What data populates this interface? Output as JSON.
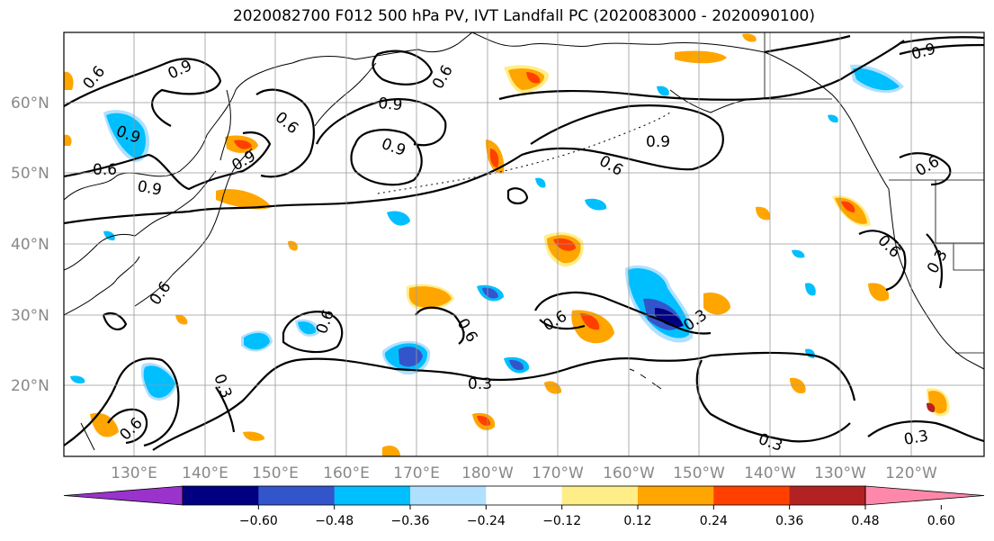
{
  "title": "2020082700 F012 500 hPa PV, IVT Landfall PC (2020083000 - 2020090100)",
  "latitudes": [
    {
      "label": "60°N",
      "lat": 60
    },
    {
      "label": "50°N",
      "lat": 50
    },
    {
      "label": "40°N",
      "lat": 40
    },
    {
      "label": "30°N",
      "lat": 30
    },
    {
      "label": "20°N",
      "lat": 20
    }
  ],
  "longitudes": [
    {
      "label": "130°E",
      "lon": 130
    },
    {
      "label": "140°E",
      "lon": 140
    },
    {
      "label": "150°E",
      "lon": 150
    },
    {
      "label": "160°E",
      "lon": 160
    },
    {
      "label": "170°E",
      "lon": 170
    },
    {
      "label": "180°W",
      "lon": 180
    },
    {
      "label": "170°W",
      "lon": 190
    },
    {
      "label": "160°W",
      "lon": 200
    },
    {
      "label": "150°W",
      "lon": 210
    },
    {
      "label": "140°W",
      "lon": 220
    },
    {
      "label": "130°W",
      "lon": 230
    },
    {
      "label": "120°W",
      "lon": 240
    }
  ],
  "colorbar": {
    "colors": [
      "#9933cc",
      "#000080",
      "#3355cc",
      "#00bfff",
      "#b0e0ff",
      "#ffffff",
      "#ffee88",
      "#ffa500",
      "#ff4000",
      "#b22222",
      "#ff88aa"
    ],
    "ticks": [
      "−0.60",
      "−0.48",
      "−0.36",
      "−0.24",
      "−0.12",
      "0.12",
      "0.24",
      "0.36",
      "0.48",
      "0.60"
    ]
  },
  "contour_labels": [
    "0.9",
    "0.6",
    "0.3"
  ],
  "legend_colors": {
    "ocean": "#ffffff",
    "contour": "#000000",
    "coast": "#000000"
  }
}
